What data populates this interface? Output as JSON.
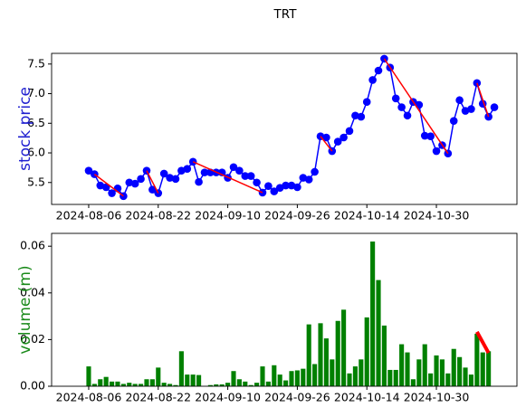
{
  "chart_data": [
    {
      "type": "line",
      "title": "TRT",
      "ylabel": "stock price",
      "label_color": "#1f1fd0",
      "categories": [
        "2024-08-06",
        null,
        null,
        null,
        null,
        null,
        null,
        null,
        null,
        null,
        null,
        null,
        "2024-08-22",
        null,
        null,
        null,
        null,
        null,
        null,
        null,
        null,
        null,
        null,
        null,
        "2024-09-10",
        null,
        null,
        null,
        null,
        null,
        null,
        null,
        null,
        null,
        null,
        null,
        "2024-09-26",
        null,
        null,
        null,
        null,
        null,
        null,
        null,
        null,
        null,
        null,
        null,
        "2024-10-14",
        null,
        null,
        null,
        null,
        null,
        null,
        null,
        null,
        null,
        null,
        null,
        "2024-10-30",
        null,
        null,
        null,
        null,
        null,
        null,
        null,
        null,
        null,
        null
      ],
      "series": [
        {
          "name": "price",
          "color": "#0000ff",
          "values": [
            5.7,
            5.64,
            5.45,
            5.42,
            5.32,
            5.4,
            5.27,
            5.5,
            5.48,
            5.56,
            5.7,
            5.38,
            5.32,
            5.65,
            5.58,
            5.56,
            5.7,
            5.73,
            5.85,
            5.51,
            5.67,
            5.67,
            5.67,
            5.67,
            5.58,
            5.76,
            5.7,
            5.61,
            5.61,
            5.5,
            5.33,
            5.44,
            5.35,
            5.41,
            5.45,
            5.45,
            5.42,
            5.58,
            5.55,
            5.68,
            6.28,
            6.26,
            6.03,
            6.19,
            6.26,
            6.37,
            6.63,
            6.61,
            6.86,
            7.23,
            7.39,
            7.59,
            7.44,
            6.92,
            6.77,
            6.63,
            6.86,
            6.81,
            6.29,
            6.28,
            6.03,
            6.13,
            5.99,
            6.54,
            6.89,
            6.71,
            6.74,
            7.18,
            6.83,
            6.61,
            6.77
          ]
        }
      ],
      "trendlines": [
        {
          "color": "#ff0000",
          "x": [
            1,
            6
          ],
          "values": [
            5.64,
            5.27
          ]
        },
        {
          "color": "#ff0000",
          "x": [
            10,
            12
          ],
          "values": [
            5.7,
            5.32
          ]
        },
        {
          "color": "#ff0000",
          "x": [
            18,
            30
          ],
          "values": [
            5.85,
            5.33
          ]
        },
        {
          "color": "#ff0000",
          "x": [
            40,
            42
          ],
          "values": [
            6.28,
            6.03
          ]
        },
        {
          "color": "#ff0000",
          "x": [
            51,
            62
          ],
          "values": [
            7.59,
            5.99
          ]
        },
        {
          "color": "#ff0000",
          "x": [
            67,
            69
          ],
          "values": [
            7.18,
            6.61
          ]
        }
      ],
      "xlim": [
        -6.4,
        73.9
      ],
      "ylim": [
        5.13,
        7.68
      ],
      "yticks": [
        {
          "value": 5.5,
          "label": "5.5"
        },
        {
          "value": 6.0,
          "label": "6.0"
        },
        {
          "value": 6.5,
          "label": "6.5"
        },
        {
          "value": 7.0,
          "label": "7.0"
        },
        {
          "value": 7.5,
          "label": "7.5"
        }
      ]
    },
    {
      "type": "bar",
      "ylabel": "volume (m)",
      "label_color": "#1a8a1a",
      "categories": [
        "2024-08-06",
        null,
        null,
        null,
        null,
        null,
        null,
        null,
        null,
        null,
        null,
        null,
        "2024-08-22",
        null,
        null,
        null,
        null,
        null,
        null,
        null,
        null,
        null,
        null,
        null,
        "2024-09-10",
        null,
        null,
        null,
        null,
        null,
        null,
        null,
        null,
        null,
        null,
        null,
        "2024-09-26",
        null,
        null,
        null,
        null,
        null,
        null,
        null,
        null,
        null,
        null,
        null,
        "2024-10-14",
        null,
        null,
        null,
        null,
        null,
        null,
        null,
        null,
        null,
        null,
        null,
        "2024-10-30",
        null,
        null,
        null,
        null,
        null,
        null,
        null,
        null,
        null,
        null
      ],
      "series": [
        {
          "name": "volume",
          "color": "#008000",
          "values": [
            0.0085,
            0.001,
            0.003,
            0.004,
            0.002,
            0.002,
            0.001,
            0.0015,
            0.001,
            0.001,
            0.003,
            0.003,
            0.008,
            0.0015,
            0.001,
            0.0005,
            0.015,
            0.005,
            0.005,
            0.0048,
            0,
            0.0005,
            0.0008,
            0.0008,
            0.0015,
            0.0065,
            0.003,
            0.002,
            0.0005,
            0.0015,
            0.0085,
            0.002,
            0.009,
            0.005,
            0.0025,
            0.0065,
            0.0068,
            0.0075,
            0.0265,
            0.0095,
            0.027,
            0.0205,
            0.0115,
            0.028,
            0.0328,
            0.0055,
            0.0085,
            0.0115,
            0.0295,
            0.062,
            0.0455,
            0.026,
            0.007,
            0.007,
            0.018,
            0.0145,
            0.003,
            0.0115,
            0.018,
            0.0055,
            0.0132,
            0.0115,
            0.0055,
            0.016,
            0.0125,
            0.008,
            0.005,
            0.0225,
            0.0145,
            0.015,
            0
          ]
        }
      ],
      "trendlines": [
        {
          "color": "#ff0000",
          "x": [
            67,
            69
          ],
          "values": [
            0.0233,
            0.0143
          ]
        }
      ],
      "xlim": [
        -6.4,
        73.9
      ],
      "ylim": [
        0,
        0.0655
      ],
      "yticks": [
        {
          "value": 0,
          "label": "0.00"
        },
        {
          "value": 0.02,
          "label": "0.02"
        },
        {
          "value": 0.04,
          "label": "0.04"
        },
        {
          "value": 0.06,
          "label": "0.06"
        }
      ]
    }
  ]
}
